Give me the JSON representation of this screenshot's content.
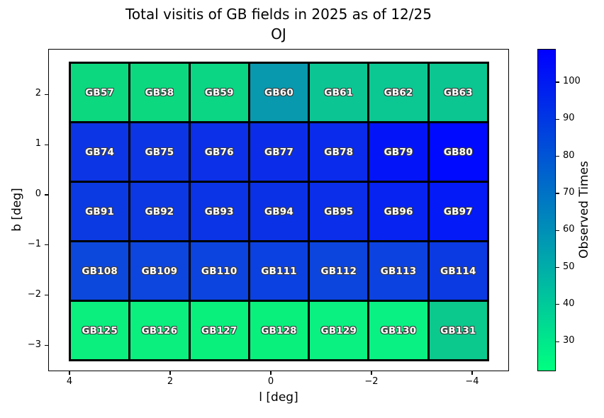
{
  "figure": {
    "title_line1": "Total visitis of GB fields in 2025 as of 12/25",
    "title_line2": "OJ",
    "xlabel": "l [deg]",
    "ylabel": "b [deg]",
    "colorbar_label": "Observed Times"
  },
  "chart_data": {
    "type": "heatmap",
    "title": "Total visitis of GB fields in 2025 as of 12/25",
    "subtitle": "OJ",
    "xlabel": "l [deg]",
    "ylabel": "b [deg]",
    "xlim": [
      4.4,
      -4.8
    ],
    "ylim": [
      -3.5,
      2.9
    ],
    "x_ticks": [
      4,
      2,
      0,
      -2,
      -4
    ],
    "x_tick_labels": [
      "4",
      "2",
      "0",
      "−2",
      "−4"
    ],
    "y_ticks": [
      2,
      1,
      0,
      -1,
      -2,
      -3
    ],
    "y_tick_labels": [
      "2",
      "1",
      "0",
      "−1",
      "−2",
      "−3"
    ],
    "grid_on": false,
    "cell_outline_color": "#000000",
    "label_color": "#ffffff",
    "colorbar": {
      "label": "Observed Times",
      "ticks": [
        100,
        90,
        80,
        70,
        60,
        50,
        40,
        30
      ],
      "vmin": 22,
      "vmax": 109,
      "colormap": "winter_r",
      "top_color": "#0000ff",
      "bottom_color": "#00ff80"
    },
    "rows": [
      {
        "b_center": 2.0,
        "cells": [
          {
            "label": "GB57",
            "color": "#0cd97f",
            "value_est": 35
          },
          {
            "label": "GB58",
            "color": "#0cd97f",
            "value_est": 35
          },
          {
            "label": "GB59",
            "color": "#0bd684",
            "value_est": 36
          },
          {
            "label": "GB60",
            "color": "#0899ae",
            "value_est": 57
          },
          {
            "label": "GB61",
            "color": "#0bc693",
            "value_est": 41
          },
          {
            "label": "GB62",
            "color": "#0bc893",
            "value_est": 41
          },
          {
            "label": "GB63",
            "color": "#0bc690",
            "value_est": 41
          }
        ]
      },
      {
        "b_center": 0.8,
        "cells": [
          {
            "label": "GB74",
            "color": "#0c35e5",
            "value_est": 91
          },
          {
            "label": "GB75",
            "color": "#0c35e5",
            "value_est": 91
          },
          {
            "label": "GB76",
            "color": "#0b30e8",
            "value_est": 93
          },
          {
            "label": "GB77",
            "color": "#0b2de9",
            "value_est": 94
          },
          {
            "label": "GB78",
            "color": "#0a2beb",
            "value_est": 94
          },
          {
            "label": "GB79",
            "color": "#0414f9",
            "value_est": 102
          },
          {
            "label": "GB80",
            "color": "#000aff",
            "value_est": 106
          }
        ]
      },
      {
        "b_center": -0.4,
        "cells": [
          {
            "label": "GB91",
            "color": "#0c3ae2",
            "value_est": 89
          },
          {
            "label": "GB92",
            "color": "#0c38e3",
            "value_est": 90
          },
          {
            "label": "GB93",
            "color": "#0b34e6",
            "value_est": 91
          },
          {
            "label": "GB94",
            "color": "#0b31e7",
            "value_est": 92
          },
          {
            "label": "GB95",
            "color": "#0a2eea",
            "value_est": 93
          },
          {
            "label": "GB96",
            "color": "#0623f2",
            "value_est": 97
          },
          {
            "label": "GB97",
            "color": "#041af7",
            "value_est": 100
          }
        ]
      },
      {
        "b_center": -1.6,
        "cells": [
          {
            "label": "GB108",
            "color": "#0d48dc",
            "value_est": 84
          },
          {
            "label": "GB109",
            "color": "#0d46de",
            "value_est": 85
          },
          {
            "label": "GB110",
            "color": "#0c44df",
            "value_est": 86
          },
          {
            "label": "GB111",
            "color": "#0c41e1",
            "value_est": 87
          },
          {
            "label": "GB112",
            "color": "#0c45de",
            "value_est": 85
          },
          {
            "label": "GB113",
            "color": "#0c42e0",
            "value_est": 87
          },
          {
            "label": "GB114",
            "color": "#0b3ae3",
            "value_est": 89
          }
        ]
      },
      {
        "b_center": -2.8,
        "cells": [
          {
            "label": "GB125",
            "color": "#0aef7e",
            "value_est": 27
          },
          {
            "label": "GB126",
            "color": "#0aef7e",
            "value_est": 27
          },
          {
            "label": "GB127",
            "color": "#09f07d",
            "value_est": 27
          },
          {
            "label": "GB128",
            "color": "#09f07d",
            "value_est": 27
          },
          {
            "label": "GB129",
            "color": "#0af081",
            "value_est": 27
          },
          {
            "label": "GB130",
            "color": "#09f183",
            "value_est": 27
          },
          {
            "label": "GB131",
            "color": "#0bc98c",
            "value_est": 40
          }
        ]
      }
    ]
  }
}
